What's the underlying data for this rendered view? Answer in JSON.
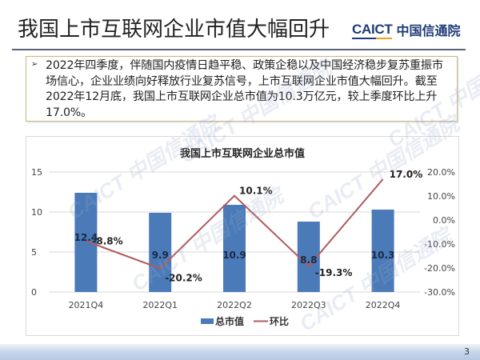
{
  "header": {
    "title": "我国上市互联网企业市值大幅回升",
    "logo_en": "CAICT",
    "logo_cn": "中国信通院"
  },
  "summary": {
    "bullet": "➢",
    "text": "2022年四季度，伴随国内疫情日趋平稳、政策企稳以及中国经济稳步复苏重振市场信心，企业业绩向好释放行业复苏信号，上市互联网企业市值大幅回升。截至2022年12月底，我国上市互联网企业总市值为10.3万亿元，较上季度环比上升17.0%。"
  },
  "watermark": {
    "text_en": "CAICT",
    "text_cn": "中国信通院"
  },
  "footer": {
    "page_number": "3"
  },
  "colors": {
    "bar": "#4a7ab8",
    "line": "#b05a5e",
    "grid": "#d9d9d9",
    "rule": "#5a6478",
    "textbox_border": "#c9b58a"
  },
  "chart_data": {
    "type": "bar",
    "title": "我国上市互联网企业总市值",
    "categories": [
      "2021Q4",
      "2022Q1",
      "2022Q2",
      "2022Q3",
      "2022Q4"
    ],
    "series": [
      {
        "name": "总市值",
        "type": "bar",
        "axis": "left",
        "values": [
          12.4,
          9.9,
          10.9,
          8.8,
          10.3
        ],
        "labels": [
          "12.4",
          "9.9",
          "10.9",
          "8.8",
          "10.3"
        ]
      },
      {
        "name": "环比",
        "type": "line",
        "axis": "right",
        "values": [
          -8.8,
          -20.2,
          10.1,
          -19.3,
          17.0
        ],
        "labels": [
          "-8.8%",
          "-20.2%",
          "10.1%",
          "-19.3%",
          "17.0%"
        ]
      }
    ],
    "left_axis": {
      "ylim": [
        0,
        15
      ],
      "ticks": [
        "0",
        "5",
        "10",
        "15"
      ]
    },
    "right_axis": {
      "ylim": [
        -30,
        20
      ],
      "ticks": [
        "-30.0%",
        "-20.0%",
        "-10.0%",
        "0.0%",
        "10.0%",
        "20.0%"
      ]
    },
    "xlabel": "",
    "ylabel": "",
    "grid": true,
    "legend_position": "bottom",
    "legend": [
      "总市值",
      "环比"
    ]
  }
}
